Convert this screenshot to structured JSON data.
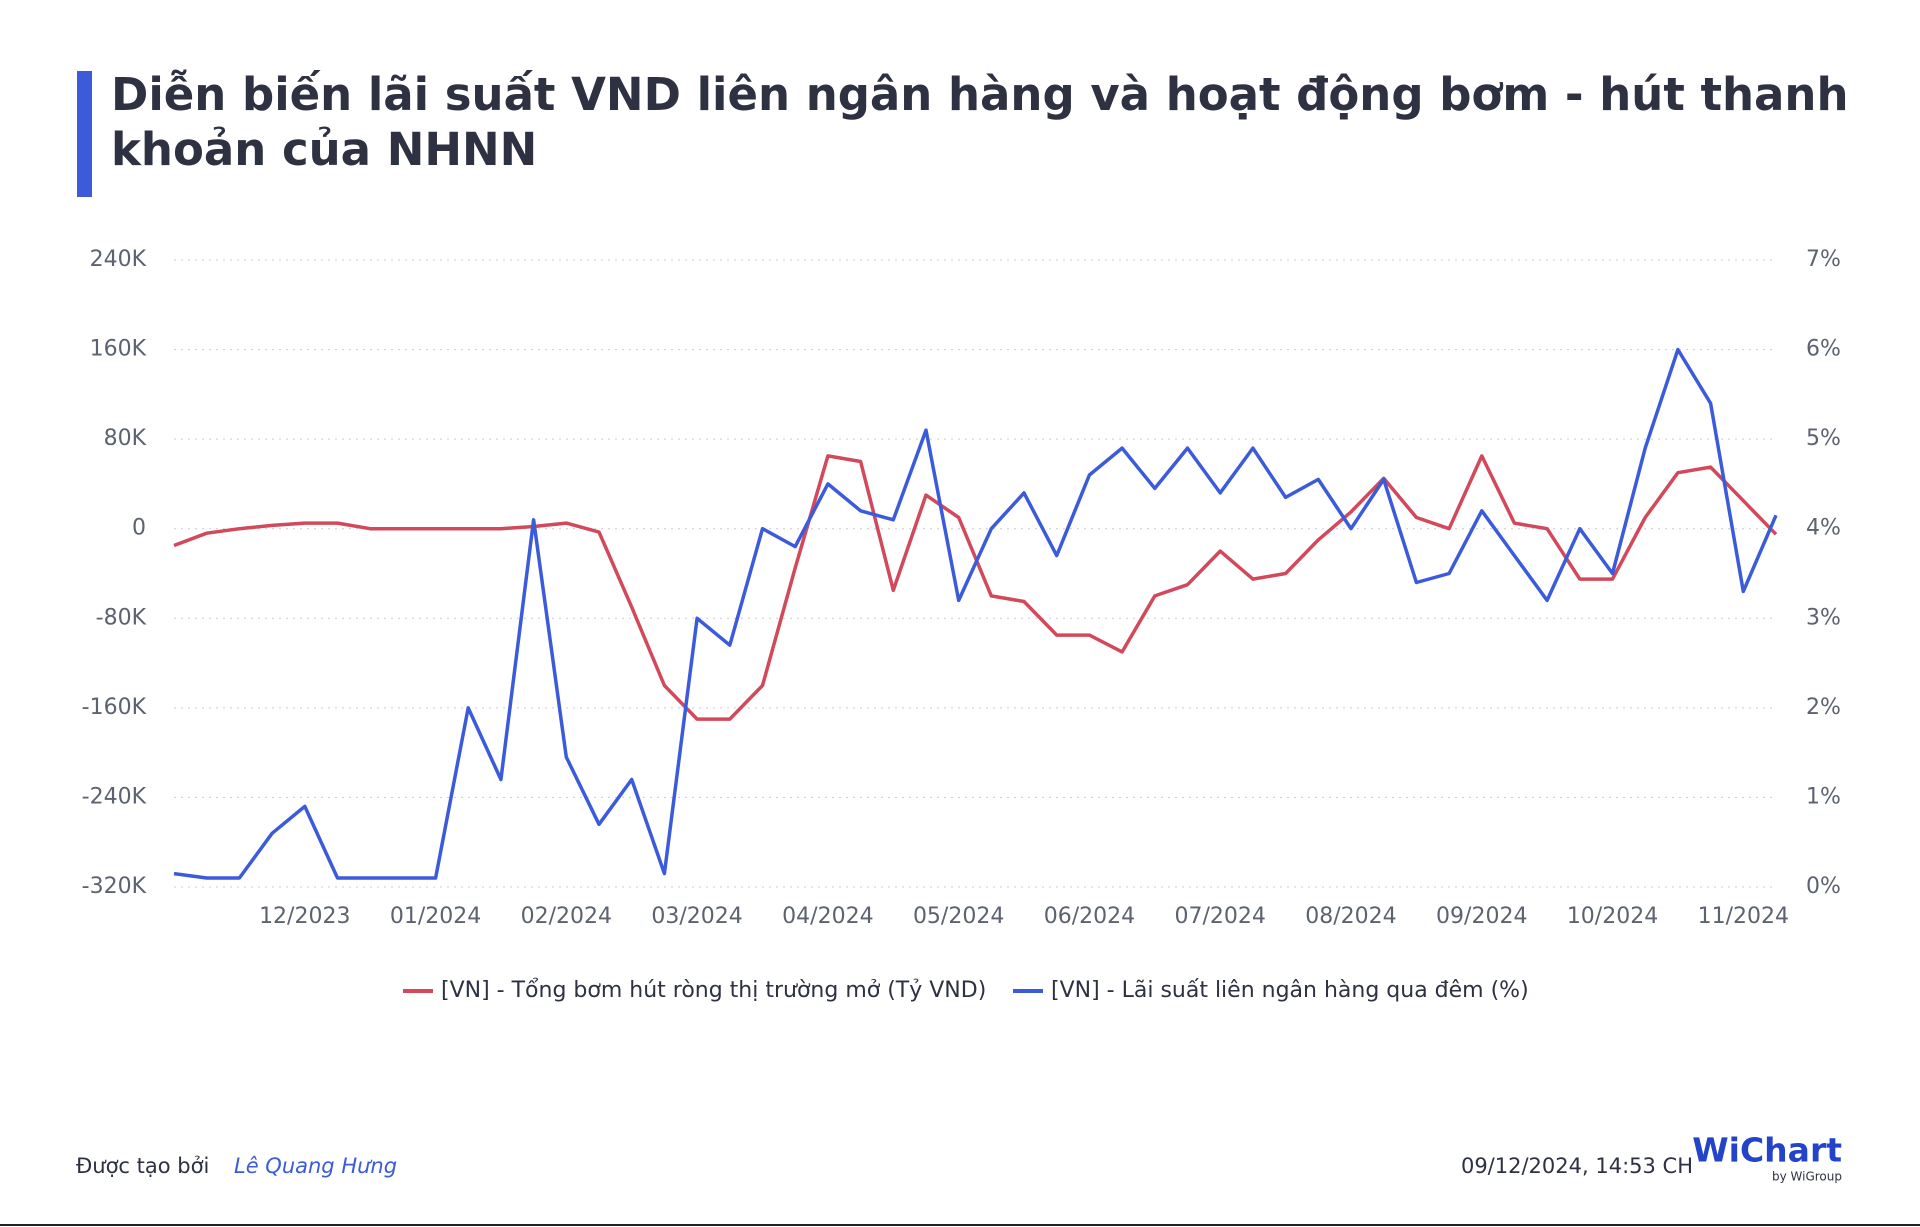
{
  "chart_data": {
    "type": "line",
    "title": "Diễn biến lãi suất VND liên ngân hàng và hoạt động bơm - hút thanh khoản của NHNN",
    "categories": [
      null,
      null,
      null,
      null,
      "12/2023",
      null,
      null,
      null,
      "01/2024",
      null,
      null,
      null,
      "02/2024",
      null,
      null,
      null,
      "03/2024",
      null,
      null,
      null,
      "04/2024",
      null,
      null,
      null,
      "05/2024",
      null,
      null,
      null,
      "06/2024",
      null,
      null,
      null,
      "07/2024",
      null,
      null,
      null,
      "08/2024",
      null,
      null,
      null,
      "09/2024",
      null,
      null,
      null,
      "10/2024",
      null,
      null,
      null,
      "11/2024",
      null
    ],
    "series": [
      {
        "name": "[VN] - Tổng bơm hút ròng thị trường mở (Tỷ VND)",
        "color": "#d1495b",
        "values": [
          -15000,
          -4000,
          0,
          3000,
          5000,
          5000,
          0,
          0,
          0,
          0,
          0,
          2000,
          5000,
          -3000,
          -70000,
          -140000,
          -170000,
          -170000,
          -140000,
          -35000,
          65000,
          60000,
          -55000,
          30000,
          10000,
          -60000,
          -65000,
          -95000,
          -95000,
          -110000,
          -60000,
          -50000,
          -20000,
          -45000,
          -40000,
          -10000,
          15000,
          45000,
          10000,
          0,
          65000,
          5000,
          0,
          -45000,
          -45000,
          10000,
          50000,
          55000,
          25000,
          -5000
        ]
      },
      {
        "name": "[VN] - Lãi suất liên ngân hàng qua đêm (%)",
        "color": "#3b5bdb",
        "axis": "y2",
        "values": [
          0.15,
          0.1,
          0.1,
          0.6,
          0.9,
          0.1,
          0.1,
          0.1,
          0.1,
          2.0,
          1.2,
          4.1,
          1.45,
          0.7,
          1.2,
          0.15,
          3.0,
          2.7,
          4.0,
          3.8,
          4.5,
          4.2,
          4.1,
          5.1,
          3.2,
          4.0,
          4.4,
          3.7,
          4.6,
          4.9,
          4.45,
          4.9,
          4.4,
          4.9,
          4.35,
          4.55,
          4.0,
          4.55,
          3.4,
          3.5,
          4.2,
          3.7,
          3.2,
          4.0,
          3.5,
          4.9,
          6.0,
          5.4,
          3.3,
          4.15
        ]
      }
    ],
    "ylim": [
      -320000,
      240000
    ],
    "yticks": [
      {
        "value": -320000,
        "label": "-320K"
      },
      {
        "value": -240000,
        "label": "-240K"
      },
      {
        "value": -160000,
        "label": "-160K"
      },
      {
        "value": -80000,
        "label": "-80K"
      },
      0,
      {
        "value": 80000,
        "label": "80K"
      },
      {
        "value": 160000,
        "label": "160K"
      },
      {
        "value": 240000,
        "label": "240K"
      }
    ],
    "y2lim": [
      0,
      7
    ],
    "y2ticks": [
      {
        "value": 0,
        "label": "0%"
      },
      {
        "value": 1,
        "label": "1%"
      },
      {
        "value": 2,
        "label": "2%"
      },
      {
        "value": 3,
        "label": "3%"
      },
      {
        "value": 4,
        "label": "4%"
      },
      {
        "value": 5,
        "label": "5%"
      },
      {
        "value": 6,
        "label": "6%"
      },
      {
        "value": 7,
        "label": "7%"
      }
    ],
    "grid": true
  },
  "footer": {
    "created_by": "Được tạo bởi",
    "author": "Lê Quang Hưng",
    "timestamp": "09/12/2024, 14:53 CH",
    "logo": "WiChart",
    "logo_sub": "by WiGroup"
  }
}
